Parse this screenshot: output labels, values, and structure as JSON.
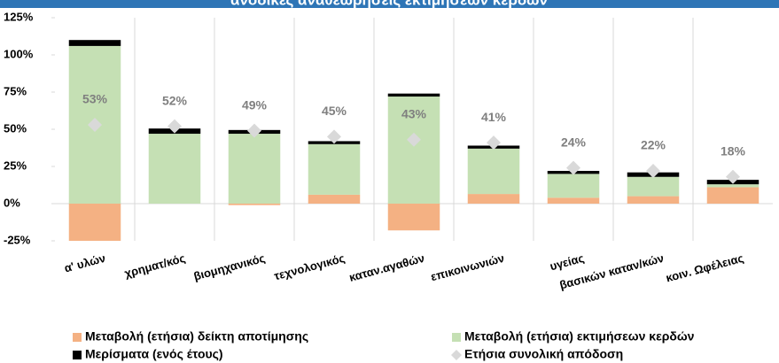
{
  "chart_data": {
    "type": "stacked-bar-with-markers",
    "title": "ανοδικές αναθεωρήσεις εκτιμήσεων κερδών",
    "categories": [
      "α' υλών",
      "χρηματ/κός",
      "βιομηχανικός",
      "τεχνολογικός",
      "καταν.αγαθών",
      "επικοινωνιών",
      "υγείας",
      "βασικών καταν/κών",
      "κοιν. Ωφέλειας"
    ],
    "series": [
      {
        "name": "Μεταβολή (ετήσια) δείκτη αποτίμησης",
        "color": "#f4b183",
        "kind": "bar",
        "values": [
          -25,
          0,
          -1,
          6,
          -18,
          6.5,
          4,
          5,
          11
        ]
      },
      {
        "name": "Μεταβολή (ετήσια) εκτιμήσεων κερδών",
        "color": "#c5e0b4",
        "kind": "bar",
        "values": [
          106,
          47,
          47,
          34,
          72,
          30.5,
          16,
          13,
          2
        ]
      },
      {
        "name": "Μερίσματα (ενός έτους)",
        "color": "#000000",
        "kind": "bar",
        "values": [
          4,
          3.5,
          2.5,
          2,
          2,
          2,
          2,
          3,
          3
        ]
      },
      {
        "name": "Ετήσια συνολική απόδοση",
        "color": "#d9d9d9",
        "kind": "marker",
        "values": [
          53,
          52,
          49,
          45,
          43,
          41,
          24,
          22,
          18
        ],
        "value_labels": [
          "53%",
          "52%",
          "49%",
          "45%",
          "43%",
          "41%",
          "24%",
          "22%",
          "18%"
        ]
      }
    ],
    "ylim": [
      -25,
      125
    ],
    "yticks": [
      {
        "value": -25,
        "label": "-25%"
      },
      {
        "value": 0,
        "label": "0%"
      },
      {
        "value": 25,
        "label": "25%"
      },
      {
        "value": 50,
        "label": "50%"
      },
      {
        "value": 75,
        "label": "75%"
      },
      {
        "value": 100,
        "label": "100%"
      },
      {
        "value": 125,
        "label": "125%"
      }
    ],
    "grid": false
  }
}
